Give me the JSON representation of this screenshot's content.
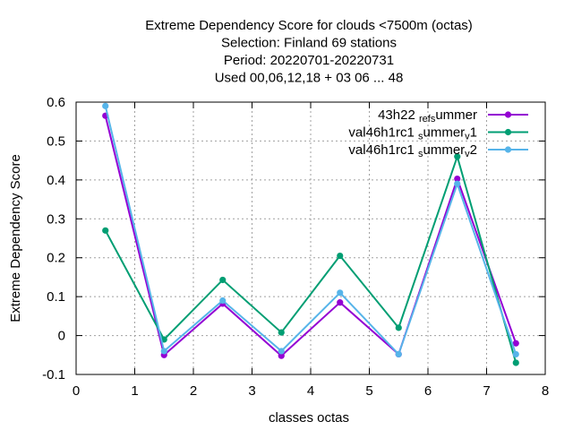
{
  "chart_data": {
    "type": "line",
    "title_lines": [
      "Extreme Dependency Score  for clouds <7500m (octas)",
      "Selection: Finland     69 stations",
      "Period: 20220701-20220731",
      "Used  00,06,12,18  + 03 06 ... 48"
    ],
    "xlabel": "classes octas",
    "ylabel": "Extreme Dependency Score",
    "xlim": [
      0,
      8
    ],
    "ylim": [
      -0.1,
      0.6
    ],
    "xticks": [
      0,
      1,
      2,
      3,
      4,
      5,
      6,
      7,
      8
    ],
    "xtick_labels": [
      "0",
      "1",
      "2",
      "3",
      "4",
      "5",
      "6",
      "7",
      "8"
    ],
    "yticks": [
      -0.1,
      0,
      0.1,
      0.2,
      0.3,
      0.4,
      0.5,
      0.6
    ],
    "ytick_labels": [
      "-0.1",
      "0",
      "0.1",
      "0.2",
      "0.3",
      "0.4",
      "0.5",
      "0.6"
    ],
    "grid": true,
    "legend_position": "top-right",
    "x": [
      0.5,
      1.5,
      2.5,
      3.5,
      4.5,
      5.5,
      6.5,
      7.5
    ],
    "series": [
      {
        "name": "43h22_ref_summer",
        "legend_parts": [
          [
            "43h22 ",
            ""
          ],
          [
            "ref",
            "sub"
          ],
          [
            "s",
            "sub"
          ],
          [
            "ummer",
            ""
          ]
        ],
        "color": "#9400d3",
        "values": [
          0.565,
          -0.05,
          0.082,
          -0.052,
          0.085,
          -0.048,
          0.403,
          -0.02
        ]
      },
      {
        "name": "val46h1rc1_summer_v1",
        "legend_parts": [
          [
            "val46h1rc1 ",
            ""
          ],
          [
            "s",
            "sub"
          ],
          [
            "ummer",
            ""
          ],
          [
            "v",
            "sub"
          ],
          [
            "1",
            ""
          ]
        ],
        "color": "#009e73",
        "values": [
          0.27,
          -0.01,
          0.143,
          0.008,
          0.205,
          0.02,
          0.46,
          -0.07
        ]
      },
      {
        "name": "val46h1rc1_summer_v2",
        "legend_parts": [
          [
            "val46h1rc1 ",
            ""
          ],
          [
            "s",
            "sub"
          ],
          [
            "ummer",
            ""
          ],
          [
            "v",
            "sub"
          ],
          [
            "2",
            ""
          ]
        ],
        "color": "#56b4e9",
        "values": [
          0.59,
          -0.04,
          0.09,
          -0.04,
          0.11,
          -0.048,
          0.39,
          -0.048
        ]
      }
    ]
  }
}
